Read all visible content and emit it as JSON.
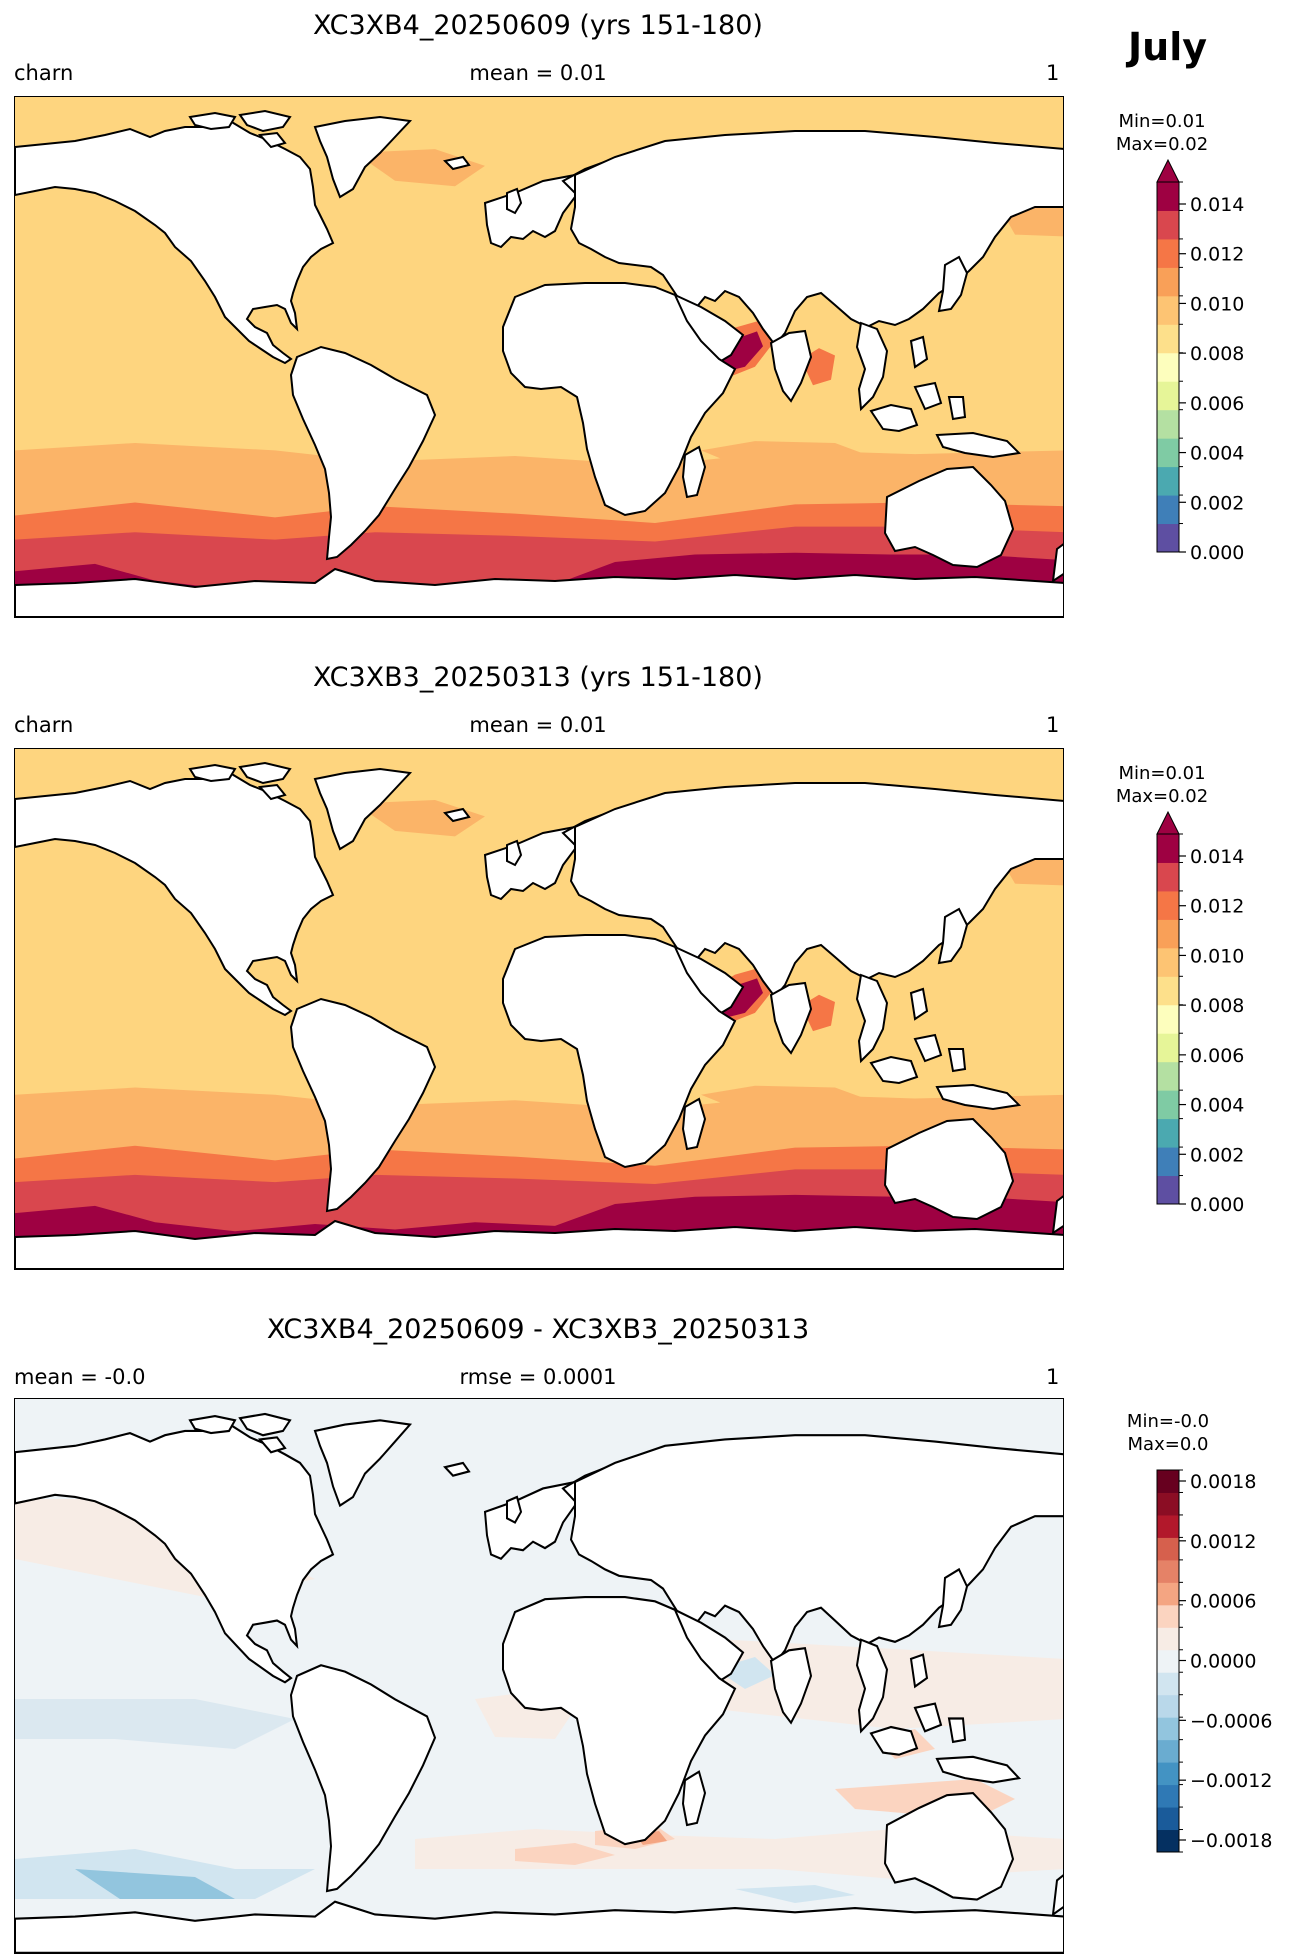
{
  "figure": {
    "month": "July"
  },
  "panels": [
    {
      "title": "XC3XB4_20250609 (yrs 151-180)",
      "left_label": "charn",
      "center_label": "mean = 0.01",
      "right_label": "1",
      "minmax": "Min=0.01\nMax=0.02",
      "colorbar": {
        "ticks": [
          "0.014",
          "0.012",
          "0.010",
          "0.008",
          "0.006",
          "0.004",
          "0.002",
          "0.000"
        ],
        "colors": [
          "#5e4fa2",
          "#3f7fb8",
          "#4ba9b0",
          "#7fcba4",
          "#b4e0a2",
          "#e6f598",
          "#fdfebd",
          "#fde08b",
          "#fdc473",
          "#f9a058",
          "#f57646",
          "#d9474e",
          "#9e0142"
        ],
        "extend_max": true
      }
    },
    {
      "title": "XC3XB3_20250313 (yrs 151-180)",
      "left_label": "charn",
      "center_label": "mean = 0.01",
      "right_label": "1",
      "minmax": "Min=0.01\nMax=0.02",
      "colorbar": {
        "ticks": [
          "0.014",
          "0.012",
          "0.010",
          "0.008",
          "0.006",
          "0.004",
          "0.002",
          "0.000"
        ],
        "colors": [
          "#5e4fa2",
          "#3f7fb8",
          "#4ba9b0",
          "#7fcba4",
          "#b4e0a2",
          "#e6f598",
          "#fdfebd",
          "#fde08b",
          "#fdc473",
          "#f9a058",
          "#f57646",
          "#d9474e",
          "#9e0142"
        ],
        "extend_max": true
      }
    },
    {
      "title": "XC3XB4_20250609 - XC3XB3_20250313",
      "left_label": "mean = -0.0",
      "center_label": "rmse = 0.0001",
      "right_label": "1",
      "minmax": "Min=-0.0\nMax=0.0",
      "colorbar": {
        "ticks": [
          "0.0018",
          "0.0012",
          "0.0006",
          "0.0000",
          "−0.0006",
          "−0.0012",
          "−0.0018"
        ],
        "colors": [
          "#053061",
          "#1a5b9a",
          "#2f79b5",
          "#4393c3",
          "#6aacd0",
          "#92c5de",
          "#b9d8ea",
          "#d1e5f0",
          "#eef3f6",
          "#f7ece5",
          "#fbd4c0",
          "#f4a582",
          "#e58267",
          "#d6604d",
          "#b2182b",
          "#8b0d24",
          "#67001f"
        ],
        "extend_max": false
      }
    }
  ]
}
